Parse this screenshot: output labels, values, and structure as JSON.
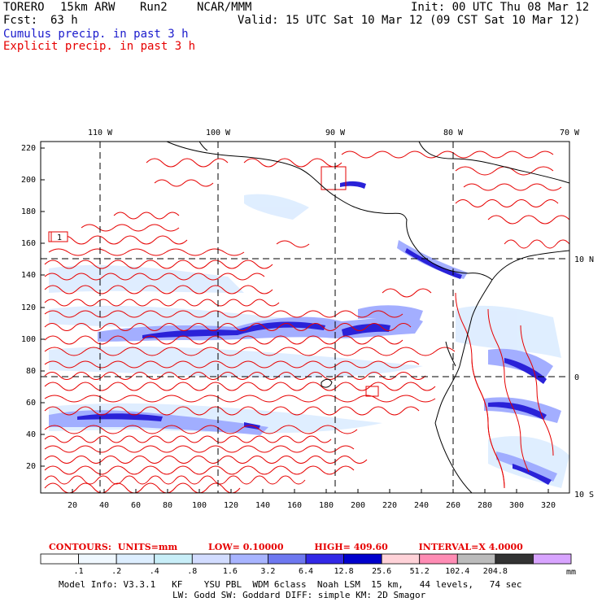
{
  "header": {
    "model": "TORERO",
    "resolution": "15km ARW",
    "run": "Run2",
    "org": "NCAR/MMM",
    "init": "Init: 00 UTC Thu 08 Mar 12",
    "fcst_label": "Fcst:",
    "fcst_value": "63 h",
    "valid": "Valid: 15 UTC Sat 10 Mar 12 (09 CST Sat 10 Mar 12)",
    "field1": "Cumulus precip. in past 3 h",
    "field2": "Explicit precip. in past 3 h",
    "field1_color": "#1a1acc",
    "field2_color": "#e60000"
  },
  "map": {
    "lon_labels": [
      "110 W",
      "100 W",
      "90 W",
      "80 W",
      "70 W"
    ],
    "lat_labels": [
      "10 N",
      "0",
      "10 S"
    ],
    "y_ticks": [
      "220",
      "200",
      "180",
      "160",
      "140",
      "120",
      "100",
      "80",
      "60",
      "40",
      "20"
    ],
    "x_ticks": [
      "20",
      "40",
      "60",
      "80",
      "100",
      "120",
      "140",
      "160",
      "180",
      "200",
      "220",
      "240",
      "260",
      "280",
      "300",
      "320"
    ],
    "box_label": "1"
  },
  "contours": {
    "label": "CONTOURS:",
    "units": "UNITS=mm",
    "low": "LOW= 0.10000",
    "high": "HIGH= 409.60",
    "interval": "INTERVAL=X 4.0000",
    "color": "#e60000"
  },
  "colorbar": {
    "labels": [
      ".1",
      ".2",
      ".4",
      ".8",
      "1.6",
      "3.2",
      "6.4",
      "12.8",
      "25.6",
      "51.2",
      "102.4",
      "204.8"
    ],
    "unit": "mm",
    "colors": [
      "#ffffff",
      "#f0f8ff",
      "#ddeeff",
      "#c8eef8",
      "#d2dcff",
      "#a8b4ff",
      "#6e78f0",
      "#3228e6",
      "#0000cc",
      "#ffd2d8",
      "#ff8cb4",
      "#bbbbbb",
      "#333333",
      "#d8a4ff"
    ]
  },
  "footer": {
    "line1": "Model Info: V3.3.1   KF    YSU PBL  WDM 6class  Noah LSM  15 km,   44 levels,   74 sec",
    "line2": "LW: Godd SW: Goddard DIFF: simple KM: 2D Smagor"
  }
}
